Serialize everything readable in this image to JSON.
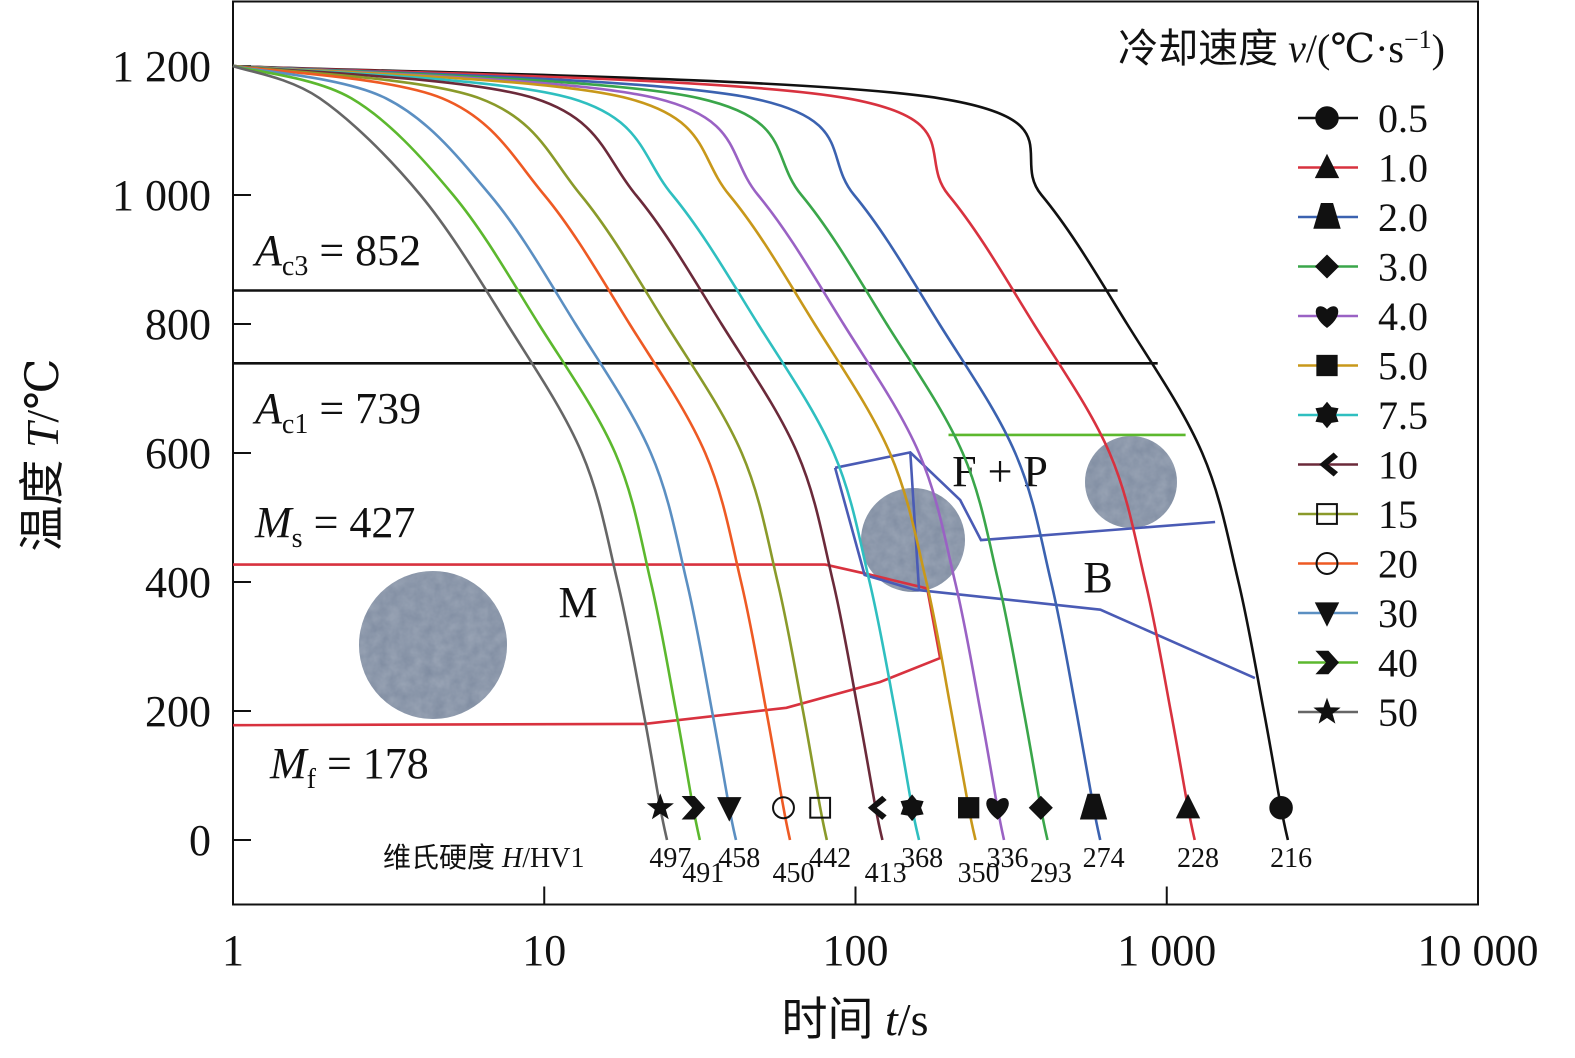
{
  "chart_data": {
    "type": "line",
    "xscale": "log",
    "xlim": [
      1,
      10000
    ],
    "ylim": [
      -100,
      1300
    ],
    "xticks": [
      1,
      10,
      100,
      {
        "value": 1000,
        "label": "1 000"
      },
      {
        "value": 10000,
        "label": "10 000"
      }
    ],
    "yticks": [
      0,
      200,
      400,
      600,
      800,
      {
        "value": 1000,
        "label": "1 000"
      },
      {
        "value": 1200,
        "label": "1 200"
      }
    ],
    "x_label": [
      "时间 ",
      "t",
      "/s"
    ],
    "y_label": [
      "温度 ",
      "T",
      "/℃"
    ],
    "legend_title": [
      "冷却速度 ",
      "v",
      "/(℃·s",
      "−1",
      ")"
    ],
    "legend": "upper right",
    "hardness_label": [
      "维氏硬度 ",
      "H",
      "/HV1"
    ],
    "annotations": [
      {
        "symbol": "A",
        "sub": "c3",
        "text": " = 852"
      },
      {
        "symbol": "A",
        "sub": "c1",
        "text": " = 739"
      },
      {
        "symbol": "M",
        "sub": "s",
        "text": " = 427"
      },
      {
        "symbol": "M",
        "sub": "f",
        "text": " = 178"
      }
    ],
    "phase_labels": [
      "M",
      "F + P",
      "B"
    ],
    "series": [
      {
        "name": "0.5",
        "color": "#111111",
        "marker": "circle",
        "hardness": 216,
        "x": [
          1,
          186,
          396,
          746,
          1300,
          1700,
          2050,
          2330,
          2450
        ],
        "values": [
          1200,
          1150,
          1000,
          800,
          600,
          400,
          200,
          50,
          0
        ]
      },
      {
        "name": "1.0",
        "color": "#d8323f",
        "marker": "triangle",
        "hardness": 228,
        "x": [
          1,
          94,
          199,
          374,
          655,
          854,
          1030,
          1170,
          1230
        ],
        "values": [
          1200,
          1150,
          1000,
          800,
          600,
          400,
          200,
          50,
          0
        ]
      },
      {
        "name": "2.0",
        "color": "#3b62b0",
        "marker": "trapezoid",
        "hardness": 274,
        "x": [
          1,
          46.6,
          99,
          186,
          326,
          425,
          512,
          582,
          611
        ],
        "values": [
          1200,
          1150,
          1000,
          800,
          600,
          400,
          200,
          50,
          0
        ]
      },
      {
        "name": "3.0",
        "color": "#3aa64a",
        "marker": "diamond",
        "hardness": 293,
        "x": [
          1,
          31.5,
          67,
          126,
          221,
          288,
          347,
          394,
          414
        ],
        "values": [
          1200,
          1150,
          1000,
          800,
          600,
          400,
          200,
          50,
          0
        ]
      },
      {
        "name": "4.0",
        "color": "#9a62c4",
        "marker": "heart",
        "hardness": 336,
        "x": [
          1,
          22.9,
          48.6,
          91.5,
          160,
          209,
          252,
          286,
          300
        ],
        "values": [
          1200,
          1150,
          1000,
          800,
          600,
          400,
          200,
          50,
          0
        ]
      },
      {
        "name": "5.0",
        "color": "#c8981a",
        "marker": "square",
        "hardness": 350,
        "x": [
          1,
          18.5,
          39.3,
          73.9,
          129,
          169,
          203,
          231,
          243
        ],
        "values": [
          1200,
          1150,
          1000,
          800,
          600,
          400,
          200,
          50,
          0
        ]
      },
      {
        "name": "7.5",
        "color": "#2fbfc0",
        "marker": "hexagram",
        "hardness": 368,
        "x": [
          1,
          12.2,
          25.8,
          48.6,
          85.1,
          111,
          134,
          152,
          160
        ],
        "values": [
          1200,
          1150,
          1000,
          800,
          600,
          400,
          200,
          50,
          0
        ]
      },
      {
        "name": "10",
        "color": "#6b2a3a",
        "marker": "chevron-left",
        "hardness": 413,
        "x": [
          1,
          9.3,
          19.7,
          37.1,
          65,
          84.7,
          102,
          116,
          122
        ],
        "values": [
          1200,
          1150,
          1000,
          800,
          600,
          400,
          200,
          50,
          0
        ]
      },
      {
        "name": "15",
        "color": "#8a9a2a",
        "marker": "open-square",
        "hardness": 442,
        "x": [
          1,
          6.2,
          13.1,
          24.6,
          43.1,
          56.2,
          67.8,
          77,
          80.9
        ],
        "values": [
          1200,
          1150,
          1000,
          800,
          600,
          400,
          200,
          50,
          0
        ]
      },
      {
        "name": "20",
        "color": "#ee5a24",
        "marker": "open-circle",
        "hardness": 450,
        "x": [
          1,
          4.7,
          10,
          18.8,
          32.9,
          42.9,
          51.7,
          58.7,
          61.6
        ],
        "values": [
          1200,
          1150,
          1000,
          800,
          600,
          400,
          200,
          50,
          0
        ]
      },
      {
        "name": "30",
        "color": "#5b8fc2",
        "marker": "triangle-down",
        "hardness": 458,
        "x": [
          1,
          3.1,
          6.7,
          12.6,
          22,
          28.7,
          34.6,
          39.3,
          41.3
        ],
        "values": [
          1200,
          1150,
          1000,
          800,
          600,
          400,
          200,
          50,
          0
        ]
      },
      {
        "name": "40",
        "color": "#5cb82e",
        "marker": "chevron-right",
        "hardness": 491,
        "x": [
          1,
          2.4,
          5.1,
          9.6,
          16.9,
          22,
          26.5,
          30.1,
          31.6
        ],
        "values": [
          1200,
          1150,
          1000,
          800,
          600,
          400,
          200,
          50,
          0
        ]
      },
      {
        "name": "50",
        "color": "#666666",
        "marker": "star",
        "hardness": 497,
        "x": [
          1,
          1.9,
          4.0,
          7.6,
          13.2,
          17.2,
          20.8,
          23.6,
          24.8
        ],
        "values": [
          1200,
          1150,
          1000,
          800,
          600,
          400,
          200,
          50,
          0
        ]
      }
    ],
    "phase_lines": [
      {
        "color": "#111111",
        "x": [
          1,
          695
        ],
        "values": [
          852,
          852
        ]
      },
      {
        "color": "#111111",
        "x": [
          1,
          935
        ],
        "values": [
          739,
          739
        ]
      },
      {
        "color": "#d8323f",
        "x": [
          1,
          80,
          110,
          170,
          187,
          120,
          60,
          21,
          1
        ],
        "values": [
          427,
          427,
          412,
          390,
          282,
          245,
          205,
          180,
          178
        ]
      },
      {
        "color": "#4a5bb5",
        "x": [
          86,
          150,
          217,
          253,
          1430
        ],
        "values": [
          577,
          601,
          527,
          465,
          493
        ]
      },
      {
        "color": "#4a5bb5",
        "x": [
          86,
          107,
          155,
          612,
          1920
        ],
        "values": [
          577,
          411,
          388,
          357,
          251
        ]
      },
      {
        "color": "#4a5bb5",
        "x": [
          150,
          160
        ],
        "values": [
          601,
          388
        ]
      },
      {
        "color": "#5cb82e",
        "x": [
          199,
          1150
        ],
        "values": [
          628,
          628
        ]
      }
    ]
  }
}
